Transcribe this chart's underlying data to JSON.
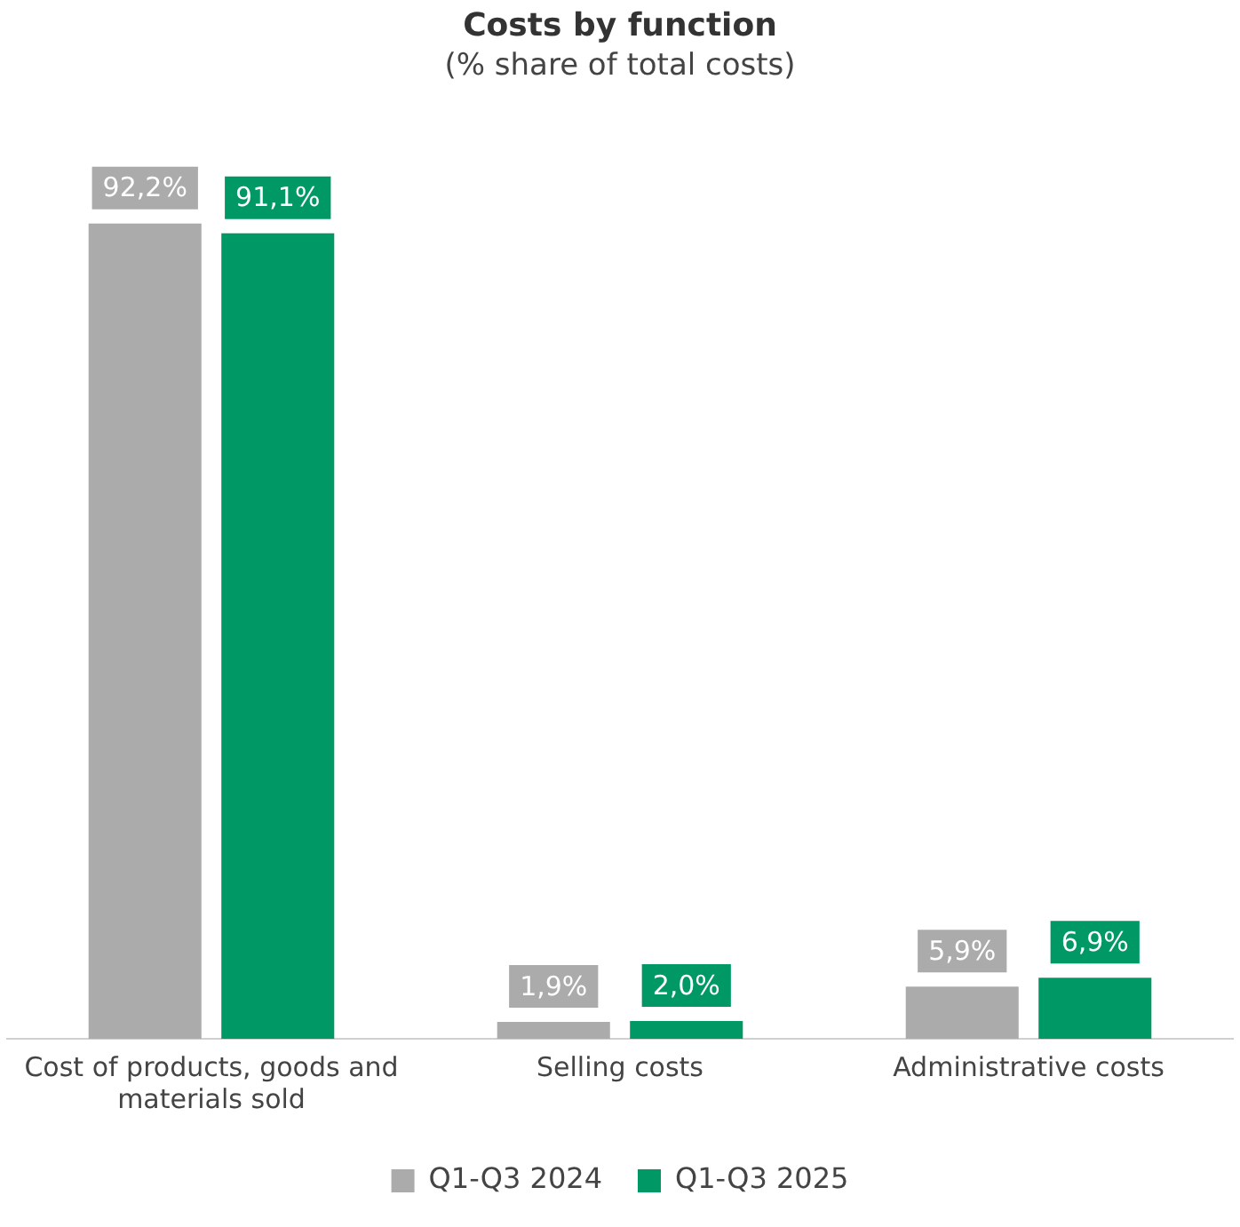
{
  "chart_data": {
    "type": "bar",
    "title": "Costs by function",
    "subtitle": "(% share of total costs)",
    "categories": [
      "Cost of products, goods and materials sold",
      "Selling costs",
      "Administrative costs"
    ],
    "series": [
      {
        "name": "Q1-Q3 2024",
        "color": "#ababab",
        "values": [
          92.2,
          1.9,
          5.9
        ],
        "value_labels": [
          "92,2%",
          "1,9%",
          "5,9%"
        ]
      },
      {
        "name": "Q1-Q3 2025",
        "color": "#009966",
        "values": [
          91.1,
          2.0,
          6.9
        ],
        "value_labels": [
          "91,1%",
          "2,0%",
          "6,9%"
        ]
      }
    ],
    "legend": "bottom",
    "grid": false
  }
}
